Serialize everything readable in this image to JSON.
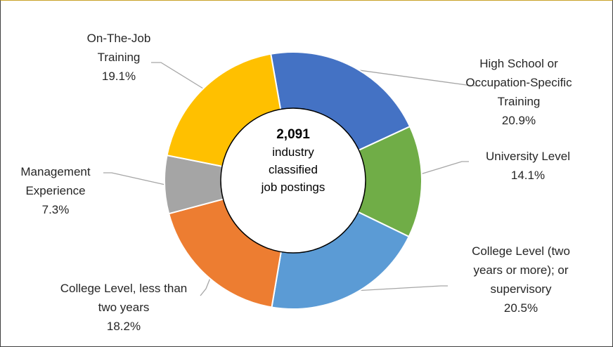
{
  "chart_data": {
    "type": "donut",
    "center_text": {
      "number": "2,091",
      "label": "industry classified job postings"
    },
    "categories": [
      "High School or Occupation-Specific Training",
      "University Level",
      "College Level (two years or more); or supervisory",
      "College Level, less than two years",
      "Management Experience",
      "On-The-Job Training"
    ],
    "values": [
      20.9,
      14.1,
      20.5,
      18.2,
      7.3,
      19.1
    ],
    "value_labels": [
      "20.9%",
      "14.1%",
      "20.5%",
      "18.2%",
      "7.3%",
      "19.1%"
    ],
    "colors": [
      "#4472c4",
      "#70ad47",
      "#5b9bd5",
      "#ed7d31",
      "#a5a5a5",
      "#ffc000"
    ]
  }
}
